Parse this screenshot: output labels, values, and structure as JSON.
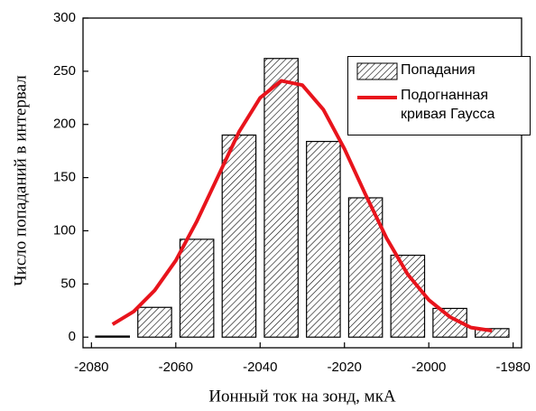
{
  "chart_data": {
    "type": "histogram",
    "xlabel": "Ионный ток на зонд, мкА",
    "ylabel": "Число попаданий в интервал",
    "name": "Попадания",
    "color": "#000000",
    "hatch": true,
    "bins": [
      -2080,
      -2070,
      -2060,
      -2050,
      -2040,
      -2030,
      -2020,
      -2010,
      -2000,
      -1990,
      -1980
    ],
    "values": [
      1,
      28,
      92,
      190,
      262,
      184,
      131,
      77,
      27,
      8
    ],
    "xlim": [
      -2082,
      -1978
    ],
    "xticks": [
      -2080,
      -2060,
      -2040,
      -2020,
      -2000,
      -1980
    ],
    "ylim": [
      -10,
      300
    ],
    "yticks": [
      0,
      50,
      100,
      150,
      200,
      250,
      300
    ],
    "fit": {
      "type": "line",
      "name": "Подогнанная кривая Гаусса",
      "color": "#e8141c",
      "x": [
        -2075,
        -2070,
        -2065,
        -2060,
        -2055,
        -2050,
        -2045,
        -2040,
        -2035,
        -2030,
        -2025,
        -2020,
        -2015,
        -2010,
        -2005,
        -2000,
        -1995,
        -1990,
        -1985
      ],
      "values": [
        12,
        24,
        44,
        72,
        109,
        151,
        193,
        225,
        241,
        237,
        214,
        177,
        134,
        93,
        59,
        35,
        19,
        9,
        6
      ]
    }
  }
}
